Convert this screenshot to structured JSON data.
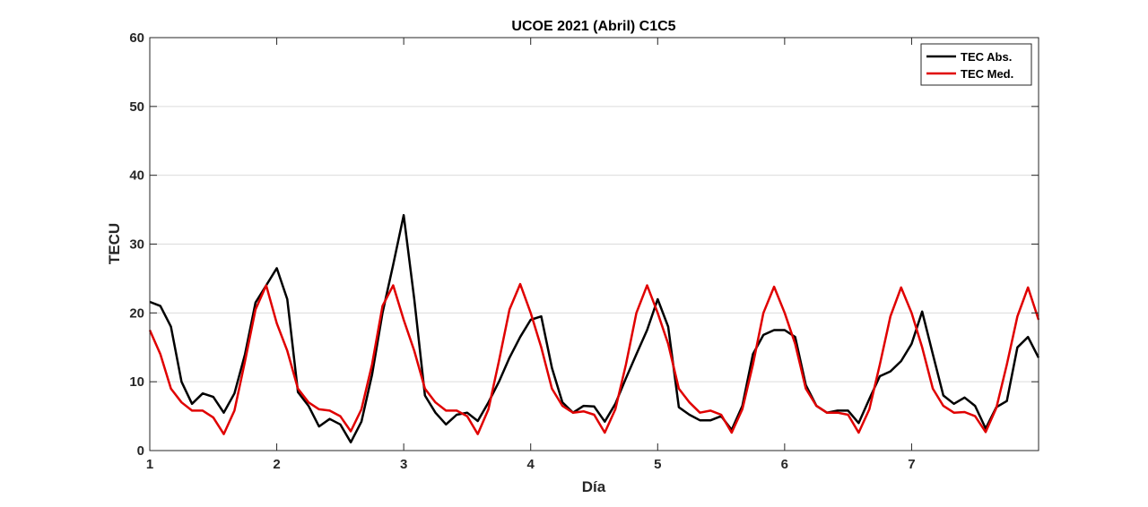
{
  "chart_data": {
    "type": "line",
    "title": "UCOE 2021 (Abril) C1C5",
    "xlabel": "Día",
    "ylabel": "TECU",
    "xlim": [
      1,
      8
    ],
    "ylim": [
      0,
      60
    ],
    "xticks": [
      1,
      2,
      3,
      4,
      5,
      6,
      7
    ],
    "yticks": [
      0,
      10,
      20,
      30,
      40,
      50,
      60
    ],
    "grid": true,
    "legend_position": "top-right",
    "series": [
      {
        "name": "TEC Abs.",
        "color": "#000000",
        "x": [
          1.0,
          1.083,
          1.167,
          1.25,
          1.333,
          1.417,
          1.5,
          1.583,
          1.667,
          1.75,
          1.833,
          1.917,
          2.0,
          2.083,
          2.167,
          2.25,
          2.333,
          2.417,
          2.5,
          2.583,
          2.667,
          2.75,
          2.833,
          2.917,
          3.0,
          3.083,
          3.167,
          3.25,
          3.333,
          3.417,
          3.5,
          3.583,
          3.667,
          3.75,
          3.833,
          3.917,
          4.0,
          4.083,
          4.167,
          4.25,
          4.333,
          4.417,
          4.5,
          4.583,
          4.667,
          4.75,
          4.833,
          4.917,
          5.0,
          5.083,
          5.167,
          5.25,
          5.333,
          5.417,
          5.5,
          5.583,
          5.667,
          5.75,
          5.833,
          5.917,
          6.0,
          6.083,
          6.167,
          6.25,
          6.333,
          6.417,
          6.5,
          6.583,
          6.667,
          6.75,
          6.833,
          6.917,
          7.0,
          7.083,
          7.167,
          7.25,
          7.333,
          7.417,
          7.5,
          7.583,
          7.667,
          7.75,
          7.833,
          7.917,
          8.0
        ],
        "y": [
          21.6,
          21.0,
          18.0,
          10.0,
          6.8,
          8.3,
          7.8,
          5.5,
          8.3,
          14.0,
          21.5,
          24.0,
          26.5,
          22.0,
          8.5,
          6.5,
          3.5,
          4.6,
          3.8,
          1.2,
          4.2,
          11.0,
          20.0,
          27.0,
          34.2,
          22.0,
          8.0,
          5.5,
          3.8,
          5.2,
          5.5,
          4.3,
          7.0,
          10.0,
          13.5,
          16.5,
          19.0,
          19.5,
          12.0,
          7.0,
          5.5,
          6.5,
          6.4,
          4.2,
          6.8,
          10.5,
          14.0,
          17.5,
          22.0,
          18.0,
          6.3,
          5.2,
          4.4,
          4.4,
          5.0,
          3.0,
          6.5,
          14.0,
          16.8,
          17.5,
          17.5,
          16.5,
          9.5,
          6.5,
          5.5,
          5.8,
          5.8,
          4.0,
          7.5,
          10.8,
          11.5,
          13.0,
          15.5,
          20.2,
          14.0,
          8.0,
          6.8,
          7.7,
          6.5,
          3.2,
          6.3,
          7.2,
          15.0,
          16.5,
          13.5
        ]
      },
      {
        "name": "TEC Med.",
        "color": "#e00000",
        "x": [
          1.0,
          1.083,
          1.167,
          1.25,
          1.333,
          1.417,
          1.5,
          1.583,
          1.667,
          1.75,
          1.833,
          1.917,
          2.0,
          2.083,
          2.167,
          2.25,
          2.333,
          2.417,
          2.5,
          2.583,
          2.667,
          2.75,
          2.833,
          2.917,
          3.0,
          3.083,
          3.167,
          3.25,
          3.333,
          3.417,
          3.5,
          3.583,
          3.667,
          3.75,
          3.833,
          3.917,
          4.0,
          4.083,
          4.167,
          4.25,
          4.333,
          4.417,
          4.5,
          4.583,
          4.667,
          4.75,
          4.833,
          4.917,
          5.0,
          5.083,
          5.167,
          5.25,
          5.333,
          5.417,
          5.5,
          5.583,
          5.667,
          5.75,
          5.833,
          5.917,
          6.0,
          6.083,
          6.167,
          6.25,
          6.333,
          6.417,
          6.5,
          6.583,
          6.667,
          6.75,
          6.833,
          6.917,
          7.0,
          7.083,
          7.167,
          7.25,
          7.333,
          7.417,
          7.5,
          7.583,
          7.667,
          7.75,
          7.833,
          7.917,
          8.0
        ],
        "y": [
          17.5,
          14.0,
          9.0,
          7.0,
          5.8,
          5.8,
          4.8,
          2.4,
          5.8,
          13.0,
          20.5,
          24.0,
          18.5,
          14.5,
          9.0,
          7.0,
          6.0,
          5.8,
          5.0,
          2.8,
          6.0,
          12.5,
          21.0,
          24.0,
          19.0,
          14.5,
          9.0,
          7.0,
          5.8,
          5.8,
          5.0,
          2.4,
          6.0,
          13.0,
          20.5,
          24.2,
          20.0,
          15.0,
          9.0,
          6.5,
          5.5,
          5.7,
          5.2,
          2.6,
          6.0,
          12.5,
          20.0,
          24.0,
          20.0,
          15.5,
          9.0,
          7.0,
          5.5,
          5.8,
          5.2,
          2.6,
          6.0,
          12.5,
          20.0,
          23.8,
          20.0,
          15.5,
          9.0,
          6.5,
          5.5,
          5.5,
          5.2,
          2.6,
          6.0,
          12.5,
          19.5,
          23.7,
          20.0,
          15.0,
          9.0,
          6.5,
          5.5,
          5.6,
          5.0,
          2.7,
          6.2,
          12.5,
          19.5,
          23.7,
          19.0
        ]
      }
    ]
  }
}
